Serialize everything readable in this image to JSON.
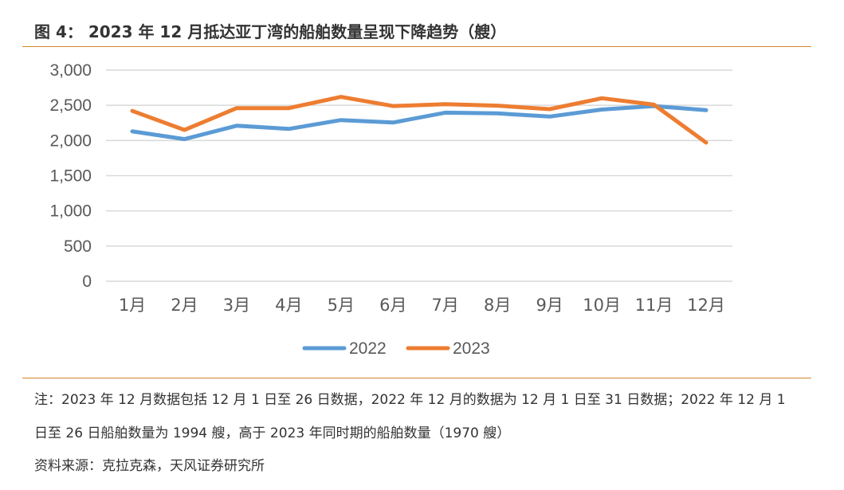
{
  "figure": {
    "title": "图 4： 2023 年 12 月抵达亚丁湾的船舶数量呈现下降趋势（艘）"
  },
  "colors": {
    "rule": "#d4862b",
    "grid": "#d9d9d9",
    "text": "#333333",
    "axis_text": "#595959"
  },
  "chart_data": {
    "type": "line",
    "categories": [
      "1月",
      "2月",
      "3月",
      "4月",
      "5月",
      "6月",
      "7月",
      "8月",
      "9月",
      "10月",
      "11月",
      "12月"
    ],
    "ylim": [
      0,
      3000
    ],
    "yticks": [
      0,
      500,
      1000,
      1500,
      2000,
      2500,
      3000
    ],
    "ytick_labels": [
      "0",
      "500",
      "1,000",
      "1,500",
      "2,000",
      "2,500",
      "3,000"
    ],
    "grid": true,
    "legend": "bottom-center",
    "series": [
      {
        "name": "2022",
        "color": "#5b9bd5",
        "values": [
          2130,
          2020,
          2210,
          2165,
          2290,
          2255,
          2395,
          2385,
          2340,
          2440,
          2490,
          2430
        ]
      },
      {
        "name": "2023",
        "color": "#ed7d31",
        "values": [
          2420,
          2150,
          2460,
          2460,
          2620,
          2490,
          2515,
          2495,
          2445,
          2600,
          2510,
          1970
        ]
      }
    ]
  },
  "notes": {
    "line1": "注：2023 年 12 月数据包括 12 月 1 日至 26 日数据，2022 年 12 月的数据为 12 月 1 日至 31 日数据；2022 年 12 月 1",
    "line2": "日至 26 日船舶数量为 1994 艘，高于 2023 年同时期的船舶数量（1970 艘）",
    "source": "资料来源：克拉克森，天风证券研究所"
  }
}
